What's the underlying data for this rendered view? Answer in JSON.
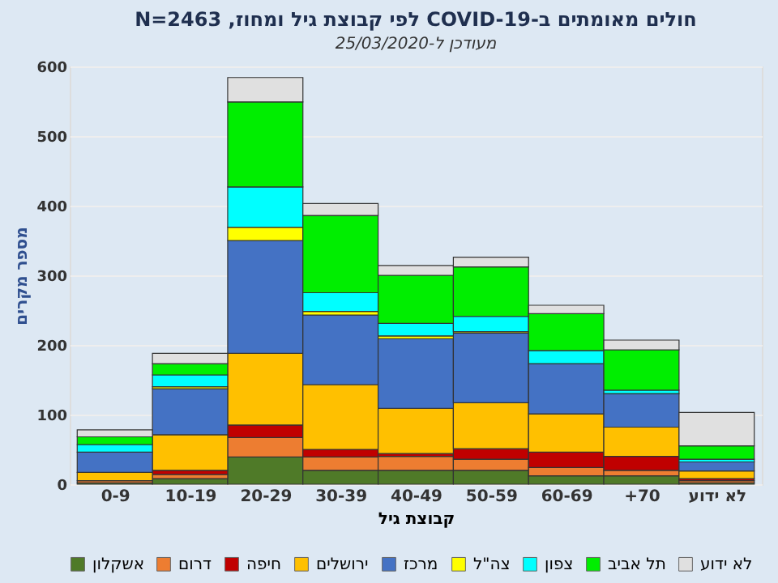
{
  "chart_data": {
    "type": "bar",
    "stacked": true,
    "title": "חולים מאומתים ב-COVID-19 לפי קבוצת גיל ומחוז, N=2463",
    "subtitle": "מעודכן ל-25/03/2020",
    "xlabel": "קבוצת גיל",
    "ylabel": "מספר מקרים",
    "categories": [
      "0-9",
      "10-19",
      "20-29",
      "30-39",
      "40-49",
      "50-59",
      "60-69",
      "+70",
      "לא ידוע"
    ],
    "series": [
      {
        "name": "אשקלון",
        "color": "#4f7a28",
        "values": [
          2,
          8,
          39,
          20,
          20,
          20,
          12,
          12,
          2
        ]
      },
      {
        "name": "דרום",
        "color": "#ed7d31",
        "values": [
          3,
          6,
          28,
          19,
          20,
          16,
          12,
          8,
          3
        ]
      },
      {
        "name": "חיפה",
        "color": "#c00000",
        "values": [
          null,
          6,
          18,
          11,
          4,
          15,
          22,
          20,
          3
        ]
      },
      {
        "name": "ירושלים",
        "color": "#ffc000",
        "values": [
          12,
          51,
          103,
          93,
          65,
          66,
          55,
          42,
          11
        ]
      },
      {
        "name": "מרכז",
        "color": "#4472c4",
        "values": [
          29,
          66,
          162,
          100,
          100,
          100,
          72,
          48,
          13
        ]
      },
      {
        "name": "צה\"ל",
        "color": "#ffff00",
        "values": [
          null,
          3,
          19,
          5,
          4,
          2,
          null,
          0,
          0
        ]
      },
      {
        "name": "צפון",
        "color": "#00ffff",
        "values": [
          11,
          17,
          58,
          27,
          18,
          22,
          19,
          5,
          4
        ]
      },
      {
        "name": "תל אביב",
        "color": "#00ee00",
        "values": [
          11,
          16,
          122,
          111,
          69,
          71,
          53,
          58,
          19
        ]
      },
      {
        "name": "לא ידוע",
        "color": "#e0e0e0",
        "values": [
          10,
          15,
          35,
          17,
          14,
          14,
          12,
          14,
          48
        ]
      }
    ],
    "ylim": [
      0,
      600
    ],
    "yticks": [
      0,
      100,
      200,
      300,
      400,
      500,
      600
    ],
    "grid": "y",
    "legend": "bottom"
  }
}
